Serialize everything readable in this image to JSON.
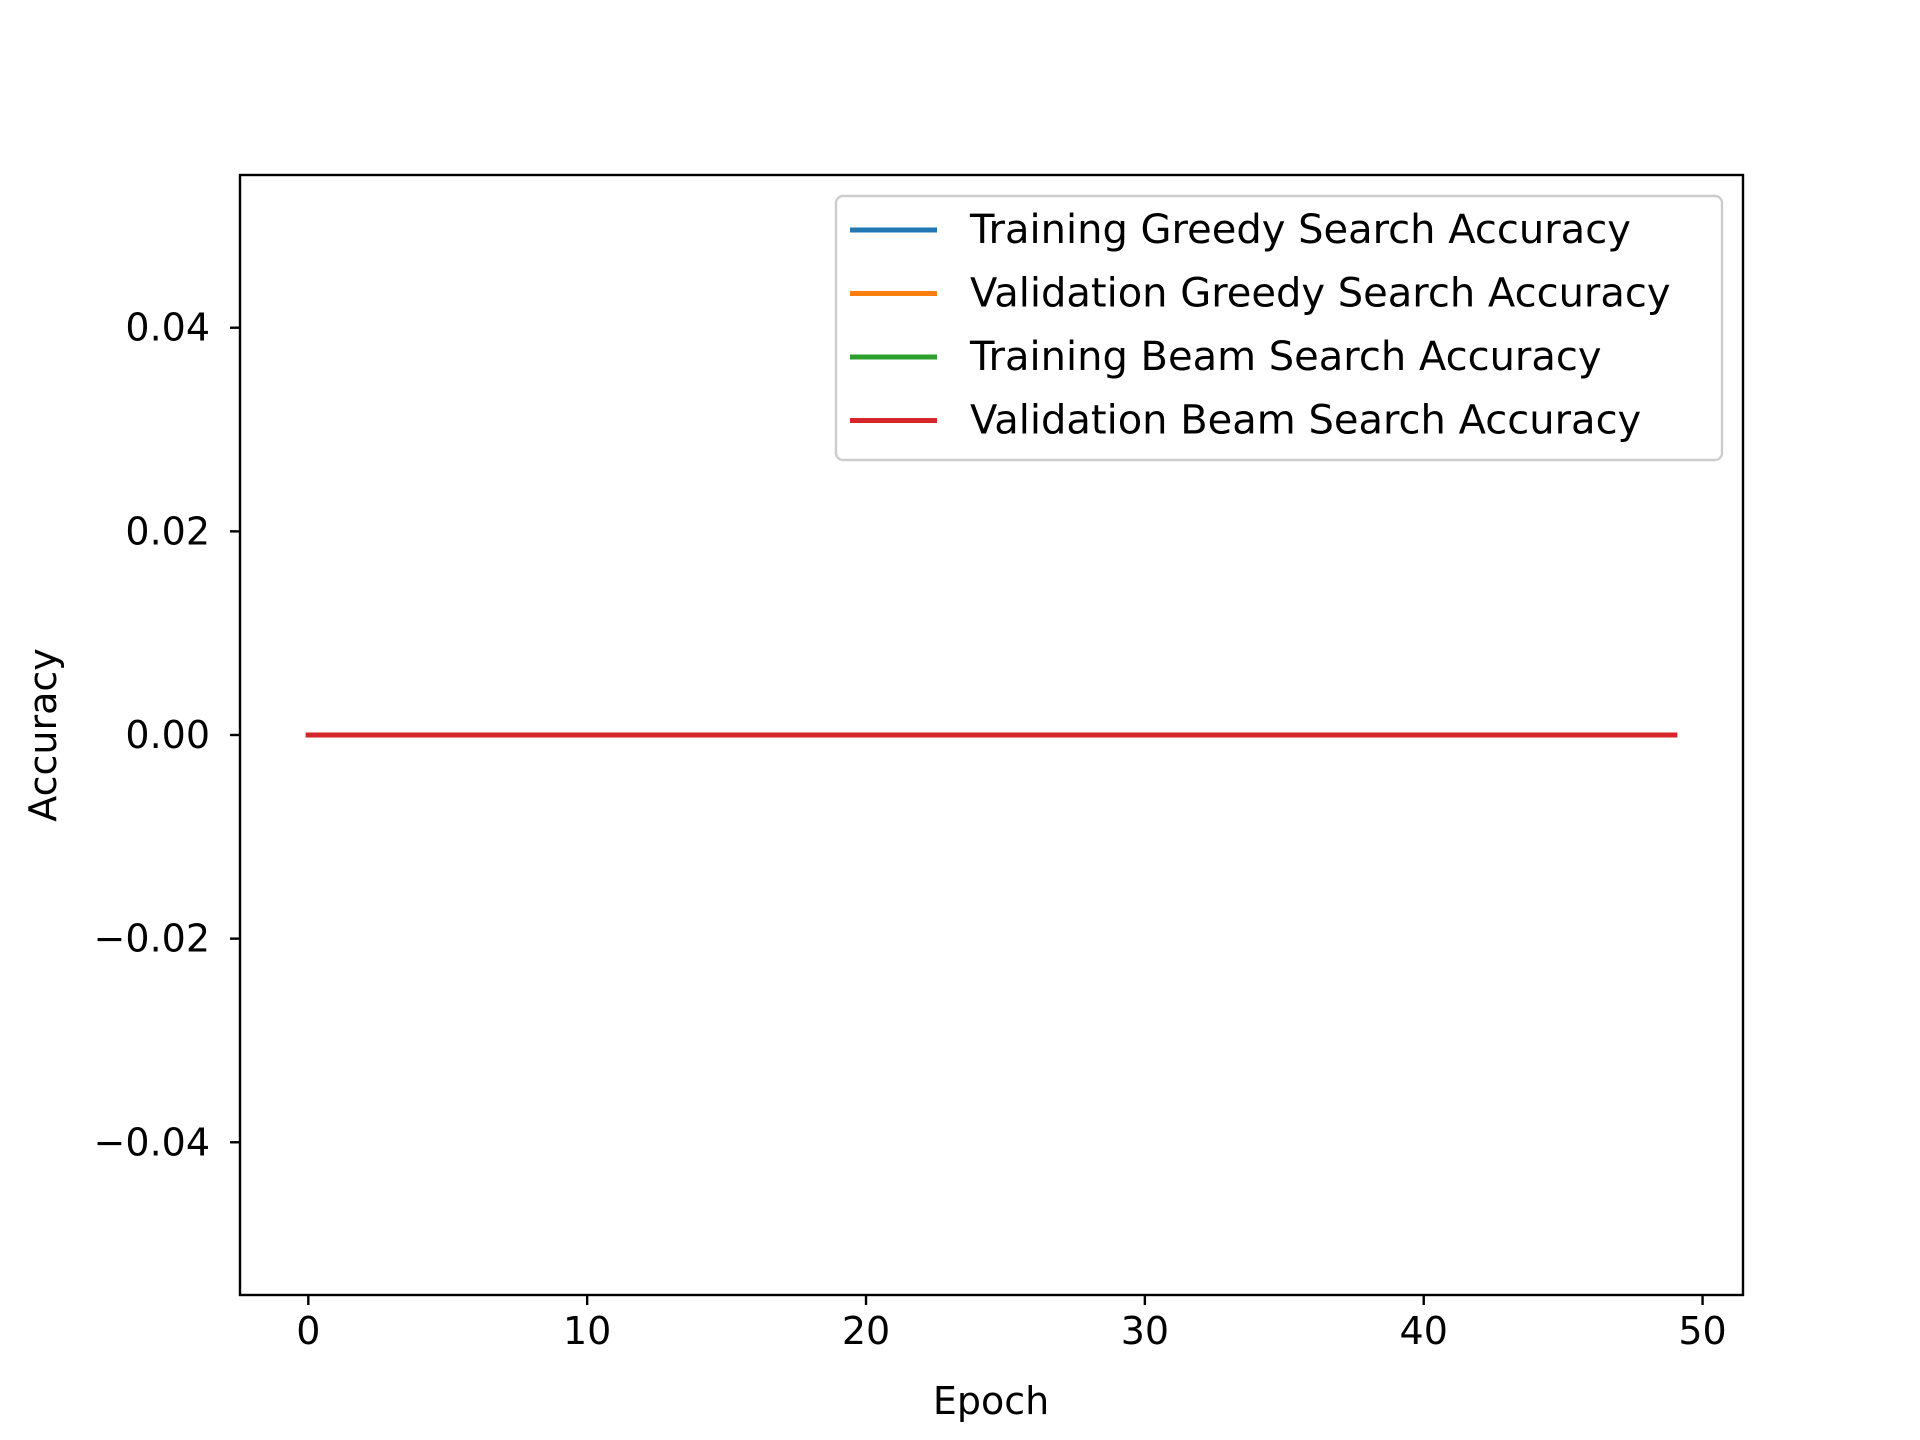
{
  "chart_data": {
    "type": "line",
    "title": "",
    "xlabel": "Epoch",
    "ylabel": "Accuracy",
    "xlim": [
      -2.45,
      51.45
    ],
    "ylim": [
      -0.055,
      0.055
    ],
    "xticks": [
      0,
      10,
      20,
      30,
      40,
      50
    ],
    "xtick_labels": [
      "0",
      "10",
      "20",
      "30",
      "40",
      "50"
    ],
    "yticks": [
      -0.04,
      -0.02,
      0.0,
      0.02,
      0.04
    ],
    "ytick_labels": [
      "−0.04",
      "−0.02",
      "0.00",
      "0.02",
      "0.04"
    ],
    "grid": false,
    "legend_position": "top-right",
    "x": [
      0,
      1,
      2,
      3,
      4,
      5,
      6,
      7,
      8,
      9,
      10,
      11,
      12,
      13,
      14,
      15,
      16,
      17,
      18,
      19,
      20,
      21,
      22,
      23,
      24,
      25,
      26,
      27,
      28,
      29,
      30,
      31,
      32,
      33,
      34,
      35,
      36,
      37,
      38,
      39,
      40,
      41,
      42,
      43,
      44,
      45,
      46,
      47,
      48,
      49
    ],
    "series": [
      {
        "name": "Training Greedy Search Accuracy",
        "color": "#1f77b4",
        "values": [
          0,
          0,
          0,
          0,
          0,
          0,
          0,
          0,
          0,
          0,
          0,
          0,
          0,
          0,
          0,
          0,
          0,
          0,
          0,
          0,
          0,
          0,
          0,
          0,
          0,
          0,
          0,
          0,
          0,
          0,
          0,
          0,
          0,
          0,
          0,
          0,
          0,
          0,
          0,
          0,
          0,
          0,
          0,
          0,
          0,
          0,
          0,
          0,
          0,
          0
        ]
      },
      {
        "name": "Validation Greedy Search Accuracy",
        "color": "#ff7f0e",
        "values": [
          0,
          0,
          0,
          0,
          0,
          0,
          0,
          0,
          0,
          0,
          0,
          0,
          0,
          0,
          0,
          0,
          0,
          0,
          0,
          0,
          0,
          0,
          0,
          0,
          0,
          0,
          0,
          0,
          0,
          0,
          0,
          0,
          0,
          0,
          0,
          0,
          0,
          0,
          0,
          0,
          0,
          0,
          0,
          0,
          0,
          0,
          0,
          0,
          0,
          0
        ]
      },
      {
        "name": "Training Beam Search Accuracy",
        "color": "#2ca02c",
        "values": [
          0,
          0,
          0,
          0,
          0,
          0,
          0,
          0,
          0,
          0,
          0,
          0,
          0,
          0,
          0,
          0,
          0,
          0,
          0,
          0,
          0,
          0,
          0,
          0,
          0,
          0,
          0,
          0,
          0,
          0,
          0,
          0,
          0,
          0,
          0,
          0,
          0,
          0,
          0,
          0,
          0,
          0,
          0,
          0,
          0,
          0,
          0,
          0,
          0,
          0
        ]
      },
      {
        "name": "Validation Beam Search Accuracy",
        "color": "#d62728",
        "values": [
          0,
          0,
          0,
          0,
          0,
          0,
          0,
          0,
          0,
          0,
          0,
          0,
          0,
          0,
          0,
          0,
          0,
          0,
          0,
          0,
          0,
          0,
          0,
          0,
          0,
          0,
          0,
          0,
          0,
          0,
          0,
          0,
          0,
          0,
          0,
          0,
          0,
          0,
          0,
          0,
          0,
          0,
          0,
          0,
          0,
          0,
          0,
          0,
          0,
          0
        ]
      }
    ]
  }
}
